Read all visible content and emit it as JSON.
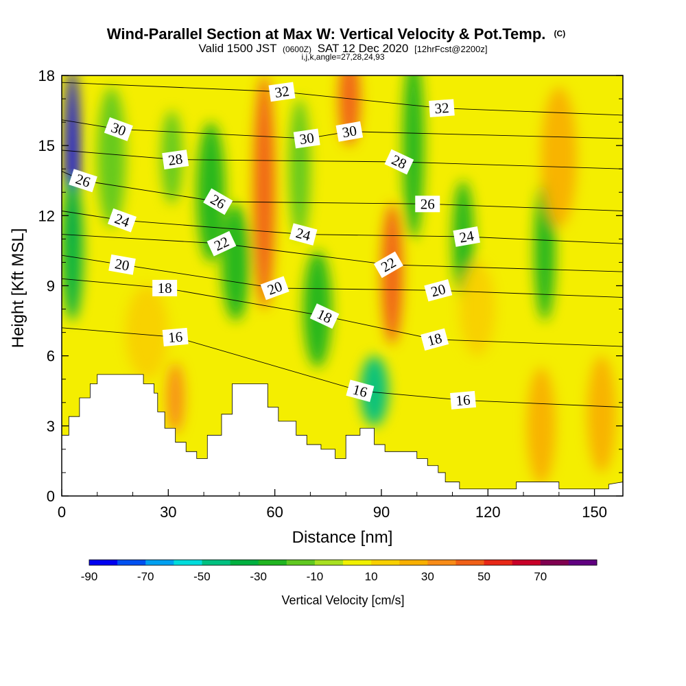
{
  "title": "Wind-Parallel Section at Max W: Vertical Velocity & Pot.Temp.",
  "copyright_mark": "(C)",
  "subtitle": {
    "prefix": "Valid 1500 JST",
    "utc": "(0600Z)",
    "date": "SAT 12 Dec 2020",
    "forecast": "[12hrFcst@2200z]"
  },
  "indices_line": "i,j,k,angle=27,28,24,93",
  "colorbar_title": "Vertical Velocity [cm/s]",
  "colors": {
    "background": "#ffffff",
    "terrain": "#ffffff",
    "contour": "#000000"
  },
  "chart_data": {
    "type": "heatmap",
    "xlabel": "Distance [nm]",
    "ylabel": "Height [Kft MSL]",
    "xlim": [
      0,
      158
    ],
    "ylim": [
      0,
      18
    ],
    "xticks": [
      0,
      30,
      60,
      90,
      120,
      150
    ],
    "xticks_minor": [
      10,
      20,
      40,
      50,
      70,
      80,
      100,
      110,
      130,
      140
    ],
    "yticks": [
      0,
      3,
      6,
      9,
      12,
      15,
      18
    ],
    "yticks_minor": [
      1,
      2,
      4,
      5,
      7,
      8,
      10,
      11,
      13,
      14,
      16,
      17
    ],
    "colorbar": {
      "levels": [
        -90,
        -80,
        -70,
        -60,
        -50,
        -40,
        -30,
        -20,
        -10,
        0,
        10,
        20,
        30,
        40,
        50,
        60,
        70,
        80
      ],
      "tick_labels": [
        -90,
        -70,
        -50,
        -30,
        -10,
        10,
        30,
        50,
        70
      ],
      "colors": [
        "#0000f0",
        "#0050f0",
        "#00a0f0",
        "#00dcdc",
        "#00c080",
        "#00b040",
        "#20b420",
        "#60c820",
        "#a8e020",
        "#f0f000",
        "#f8d000",
        "#f8b000",
        "#f88c18",
        "#f06018",
        "#e82818",
        "#c80028",
        "#800050",
        "#600080"
      ]
    },
    "terrain_profile": [
      [
        0,
        2.6
      ],
      [
        2,
        2.6
      ],
      [
        2,
        3.4
      ],
      [
        5,
        3.4
      ],
      [
        5,
        4.2
      ],
      [
        8,
        4.2
      ],
      [
        8,
        4.8
      ],
      [
        10,
        4.8
      ],
      [
        10,
        5.2
      ],
      [
        23,
        5.2
      ],
      [
        23,
        4.8
      ],
      [
        26,
        4.8
      ],
      [
        26,
        4.4
      ],
      [
        27,
        4.4
      ],
      [
        27,
        3.6
      ],
      [
        29,
        3.6
      ],
      [
        29,
        2.9
      ],
      [
        32,
        2.9
      ],
      [
        32,
        2.3
      ],
      [
        35,
        2.3
      ],
      [
        35,
        1.9
      ],
      [
        38,
        1.9
      ],
      [
        38,
        1.6
      ],
      [
        41,
        1.6
      ],
      [
        41,
        2.6
      ],
      [
        45,
        2.6
      ],
      [
        45,
        3.5
      ],
      [
        48,
        3.5
      ],
      [
        48,
        4.8
      ],
      [
        58,
        4.8
      ],
      [
        58,
        3.8
      ],
      [
        61,
        3.8
      ],
      [
        61,
        3.2
      ],
      [
        66,
        3.2
      ],
      [
        66,
        2.6
      ],
      [
        69,
        2.6
      ],
      [
        69,
        2.2
      ],
      [
        73,
        2.2
      ],
      [
        73,
        2.0
      ],
      [
        77,
        2.0
      ],
      [
        77,
        1.6
      ],
      [
        80,
        1.6
      ],
      [
        80,
        2.6
      ],
      [
        84,
        2.6
      ],
      [
        84,
        2.9
      ],
      [
        88,
        2.9
      ],
      [
        88,
        2.2
      ],
      [
        91,
        2.2
      ],
      [
        91,
        1.9
      ],
      [
        100,
        1.9
      ],
      [
        100,
        1.6
      ],
      [
        103,
        1.6
      ],
      [
        103,
        1.3
      ],
      [
        106,
        1.3
      ],
      [
        106,
        1.0
      ],
      [
        108,
        1.0
      ],
      [
        108,
        0.6
      ],
      [
        112,
        0.6
      ],
      [
        112,
        0.3
      ],
      [
        121,
        0.3
      ],
      [
        121,
        0.3
      ],
      [
        128,
        0.3
      ],
      [
        128,
        0.6
      ],
      [
        140,
        0.6
      ],
      [
        140,
        0.3
      ],
      [
        147,
        0.3
      ],
      [
        147,
        0.3
      ],
      [
        154,
        0.3
      ],
      [
        154,
        0.5
      ],
      [
        158,
        0.6
      ]
    ],
    "vertical_velocity_cells": [
      {
        "x": 3,
        "y": 14.5,
        "w": -90,
        "sx": 2,
        "sy": 3.8
      },
      {
        "x": 3,
        "y": 10.5,
        "w": -40,
        "sx": 3,
        "sy": 3
      },
      {
        "x": 14,
        "y": 14.5,
        "w": -20,
        "sx": 4,
        "sy": 3
      },
      {
        "x": 31,
        "y": 14.5,
        "w": -15,
        "sx": 3,
        "sy": 2
      },
      {
        "x": 42,
        "y": 13,
        "w": -25,
        "sx": 4,
        "sy": 3
      },
      {
        "x": 49,
        "y": 10,
        "w": -25,
        "sx": 4,
        "sy": 2.5
      },
      {
        "x": 67,
        "y": 14,
        "w": -20,
        "sx": 3,
        "sy": 3
      },
      {
        "x": 72,
        "y": 8,
        "w": -25,
        "sx": 4,
        "sy": 2.5
      },
      {
        "x": 88,
        "y": 4.5,
        "w": -45,
        "sx": 4,
        "sy": 1.5
      },
      {
        "x": 99,
        "y": 15,
        "w": -30,
        "sx": 3,
        "sy": 4
      },
      {
        "x": 113,
        "y": 11,
        "w": -25,
        "sx": 3,
        "sy": 2.5
      },
      {
        "x": 136,
        "y": 10.5,
        "w": -25,
        "sx": 3,
        "sy": 3
      },
      {
        "x": 57,
        "y": 13,
        "w": 45,
        "sx": 3,
        "sy": 5
      },
      {
        "x": 81,
        "y": 17,
        "w": 45,
        "sx": 3,
        "sy": 2
      },
      {
        "x": 93,
        "y": 9.5,
        "w": 45,
        "sx": 3,
        "sy": 3
      },
      {
        "x": 32,
        "y": 4.2,
        "w": 35,
        "sx": 2.5,
        "sy": 1.5
      },
      {
        "x": 135,
        "y": 3,
        "w": 25,
        "sx": 4,
        "sy": 2.5
      },
      {
        "x": 152,
        "y": 3.5,
        "w": 25,
        "sx": 4,
        "sy": 2.5
      },
      {
        "x": 140,
        "y": 14.5,
        "w": 25,
        "sx": 5,
        "sy": 3
      },
      {
        "x": 24,
        "y": 7,
        "w": 15,
        "sx": 6,
        "sy": 2
      },
      {
        "x": 117,
        "y": 8,
        "w": 15,
        "sx": 5,
        "sy": 2
      }
    ],
    "theta_labels": [
      {
        "text": "32",
        "x": 62,
        "y": 17.3,
        "angle": -8
      },
      {
        "text": "32",
        "x": 107,
        "y": 16.6,
        "angle": -4
      },
      {
        "text": "30",
        "x": 16,
        "y": 15.7,
        "angle": 20
      },
      {
        "text": "30",
        "x": 69,
        "y": 15.3,
        "angle": -8
      },
      {
        "text": "30",
        "x": 81,
        "y": 15.6,
        "angle": -10
      },
      {
        "text": "28",
        "x": 32,
        "y": 14.4,
        "angle": -8
      },
      {
        "text": "28",
        "x": 95,
        "y": 14.3,
        "angle": 25
      },
      {
        "text": "26",
        "x": 6,
        "y": 13.5,
        "angle": 18
      },
      {
        "text": "26",
        "x": 44,
        "y": 12.6,
        "angle": 30
      },
      {
        "text": "26",
        "x": 103,
        "y": 12.5,
        "angle": 0
      },
      {
        "text": "24",
        "x": 17,
        "y": 11.8,
        "angle": 20
      },
      {
        "text": "24",
        "x": 68,
        "y": 11.2,
        "angle": 15
      },
      {
        "text": "24",
        "x": 114,
        "y": 11.1,
        "angle": -10
      },
      {
        "text": "22",
        "x": 45,
        "y": 10.8,
        "angle": -25
      },
      {
        "text": "22",
        "x": 92,
        "y": 9.9,
        "angle": -30
      },
      {
        "text": "20",
        "x": 17,
        "y": 9.9,
        "angle": 10
      },
      {
        "text": "20",
        "x": 60,
        "y": 8.9,
        "angle": -20
      },
      {
        "text": "20",
        "x": 106,
        "y": 8.8,
        "angle": -15
      },
      {
        "text": "18",
        "x": 29,
        "y": 8.9,
        "angle": 0
      },
      {
        "text": "18",
        "x": 74,
        "y": 7.7,
        "angle": 25
      },
      {
        "text": "18",
        "x": 105,
        "y": 6.7,
        "angle": -15
      },
      {
        "text": "16",
        "x": 32,
        "y": 6.8,
        "angle": -5
      },
      {
        "text": "16",
        "x": 84,
        "y": 4.5,
        "angle": 15
      },
      {
        "text": "16",
        "x": 113,
        "y": 4.1,
        "angle": -5
      }
    ]
  }
}
